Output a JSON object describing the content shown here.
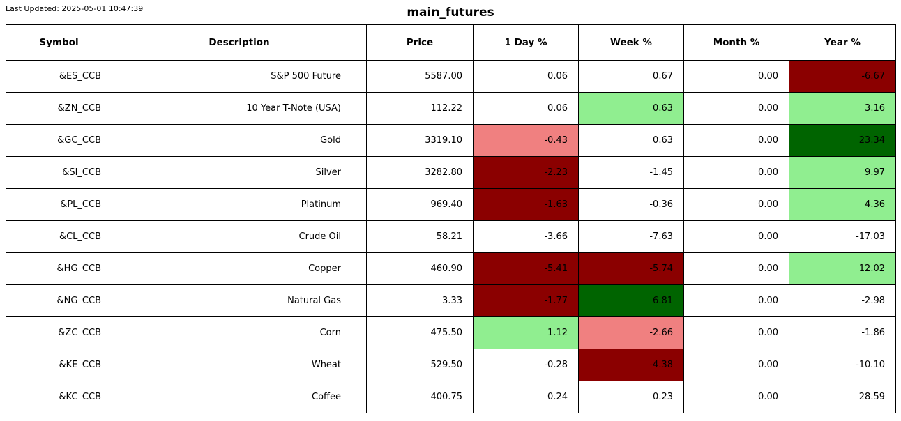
{
  "header": {
    "last_updated": "Last Updated: 2025-05-01 10:47:39",
    "title": "main_futures"
  },
  "colors": {
    "darkred": "#8b0000",
    "lightcoral": "#f08080",
    "lightgreen": "#90ee90",
    "darkgreen": "#006400",
    "border": "#000000",
    "background": "#ffffff"
  },
  "chart_data": {
    "type": "table",
    "title": "main_futures",
    "last_updated_text": "Last Updated: 2025-05-01 10:47:39",
    "columns": [
      "Symbol",
      "Description",
      "Price",
      "1 Day %",
      "Week %",
      "Month %",
      "Year %"
    ],
    "change_columns": [
      "1 Day %",
      "Week %",
      "Month %",
      "Year %"
    ],
    "highlight_legend": {
      "darkred": "strong negative move",
      "lightcoral": "mild negative move",
      "lightgreen": "mild positive move",
      "darkgreen": "strong positive move"
    },
    "rows": [
      {
        "symbol": "&ES_CCB",
        "description": "S&P 500 Future",
        "price": "5587.00",
        "changes": [
          {
            "value": "0.06",
            "bg": null
          },
          {
            "value": "0.67",
            "bg": null
          },
          {
            "value": "0.00",
            "bg": null
          },
          {
            "value": "-6.67",
            "bg": "darkred"
          }
        ]
      },
      {
        "symbol": "&ZN_CCB",
        "description": "10 Year T-Note (USA)",
        "price": "112.22",
        "changes": [
          {
            "value": "0.06",
            "bg": null
          },
          {
            "value": "0.63",
            "bg": "lightgreen"
          },
          {
            "value": "0.00",
            "bg": null
          },
          {
            "value": "3.16",
            "bg": "lightgreen"
          }
        ]
      },
      {
        "symbol": "&GC_CCB",
        "description": "Gold",
        "price": "3319.10",
        "changes": [
          {
            "value": "-0.43",
            "bg": "lightcoral"
          },
          {
            "value": "0.63",
            "bg": null
          },
          {
            "value": "0.00",
            "bg": null
          },
          {
            "value": "23.34",
            "bg": "darkgreen"
          }
        ]
      },
      {
        "symbol": "&SI_CCB",
        "description": "Silver",
        "price": "3282.80",
        "changes": [
          {
            "value": "-2.23",
            "bg": "darkred"
          },
          {
            "value": "-1.45",
            "bg": null
          },
          {
            "value": "0.00",
            "bg": null
          },
          {
            "value": "9.97",
            "bg": "lightgreen"
          }
        ]
      },
      {
        "symbol": "&PL_CCB",
        "description": "Platinum",
        "price": "969.40",
        "changes": [
          {
            "value": "-1.63",
            "bg": "darkred"
          },
          {
            "value": "-0.36",
            "bg": null
          },
          {
            "value": "0.00",
            "bg": null
          },
          {
            "value": "4.36",
            "bg": "lightgreen"
          }
        ]
      },
      {
        "symbol": "&CL_CCB",
        "description": "Crude Oil",
        "price": "58.21",
        "changes": [
          {
            "value": "-3.66",
            "bg": null
          },
          {
            "value": "-7.63",
            "bg": null
          },
          {
            "value": "0.00",
            "bg": null
          },
          {
            "value": "-17.03",
            "bg": null
          }
        ]
      },
      {
        "symbol": "&HG_CCB",
        "description": "Copper",
        "price": "460.90",
        "changes": [
          {
            "value": "-5.41",
            "bg": "darkred"
          },
          {
            "value": "-5.74",
            "bg": "darkred"
          },
          {
            "value": "0.00",
            "bg": null
          },
          {
            "value": "12.02",
            "bg": "lightgreen"
          }
        ]
      },
      {
        "symbol": "&NG_CCB",
        "description": "Natural Gas",
        "price": "3.33",
        "changes": [
          {
            "value": "-1.77",
            "bg": "darkred"
          },
          {
            "value": "6.81",
            "bg": "darkgreen"
          },
          {
            "value": "0.00",
            "bg": null
          },
          {
            "value": "-2.98",
            "bg": null
          }
        ]
      },
      {
        "symbol": "&ZC_CCB",
        "description": "Corn",
        "price": "475.50",
        "changes": [
          {
            "value": "1.12",
            "bg": "lightgreen"
          },
          {
            "value": "-2.66",
            "bg": "lightcoral"
          },
          {
            "value": "0.00",
            "bg": null
          },
          {
            "value": "-1.86",
            "bg": null
          }
        ]
      },
      {
        "symbol": "&KE_CCB",
        "description": "Wheat",
        "price": "529.50",
        "changes": [
          {
            "value": "-0.28",
            "bg": null
          },
          {
            "value": "-4.38",
            "bg": "darkred"
          },
          {
            "value": "0.00",
            "bg": null
          },
          {
            "value": "-10.10",
            "bg": null
          }
        ]
      },
      {
        "symbol": "&KC_CCB",
        "description": "Coffee",
        "price": "400.75",
        "changes": [
          {
            "value": "0.24",
            "bg": null
          },
          {
            "value": "0.23",
            "bg": null
          },
          {
            "value": "0.00",
            "bg": null
          },
          {
            "value": "28.59",
            "bg": null
          }
        ]
      }
    ]
  }
}
